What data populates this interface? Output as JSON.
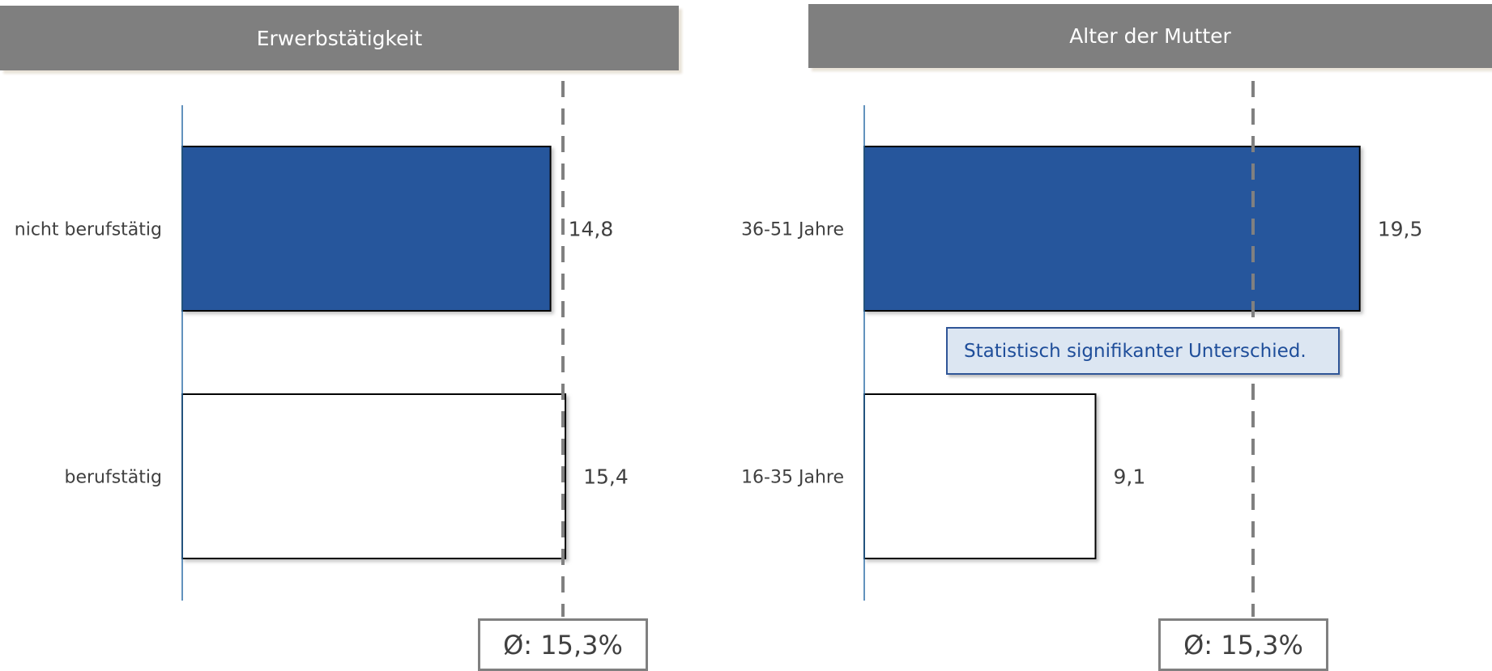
{
  "colors": {
    "header_bg": "#7f7f7f",
    "bar_highlight": "#25579c",
    "bar_plain": "#ffffff",
    "avg_line": "#808080",
    "note_bg": "#dce6f2",
    "note_text": "#1f4e9a"
  },
  "chart_data": [
    {
      "type": "bar",
      "orientation": "horizontal",
      "title": "Erwerbstätigkeit",
      "categories": [
        "nicht berufstätig",
        "berufstätig"
      ],
      "values": [
        14.8,
        15.4
      ],
      "value_labels": [
        "14,8",
        "15,4"
      ],
      "highlight": [
        true,
        false
      ],
      "average": 15.3,
      "average_label": "Ø: 15,3%",
      "note": ""
    },
    {
      "type": "bar",
      "orientation": "horizontal",
      "title": "Alter der Mutter",
      "categories": [
        "36-51 Jahre",
        "16-35 Jahre"
      ],
      "values": [
        19.5,
        9.1
      ],
      "value_labels": [
        "19,5",
        "9,1"
      ],
      "highlight": [
        true,
        false
      ],
      "average": 15.3,
      "average_label": "Ø: 15,3%",
      "note": "Statistisch signifikanter Unterschied."
    }
  ]
}
